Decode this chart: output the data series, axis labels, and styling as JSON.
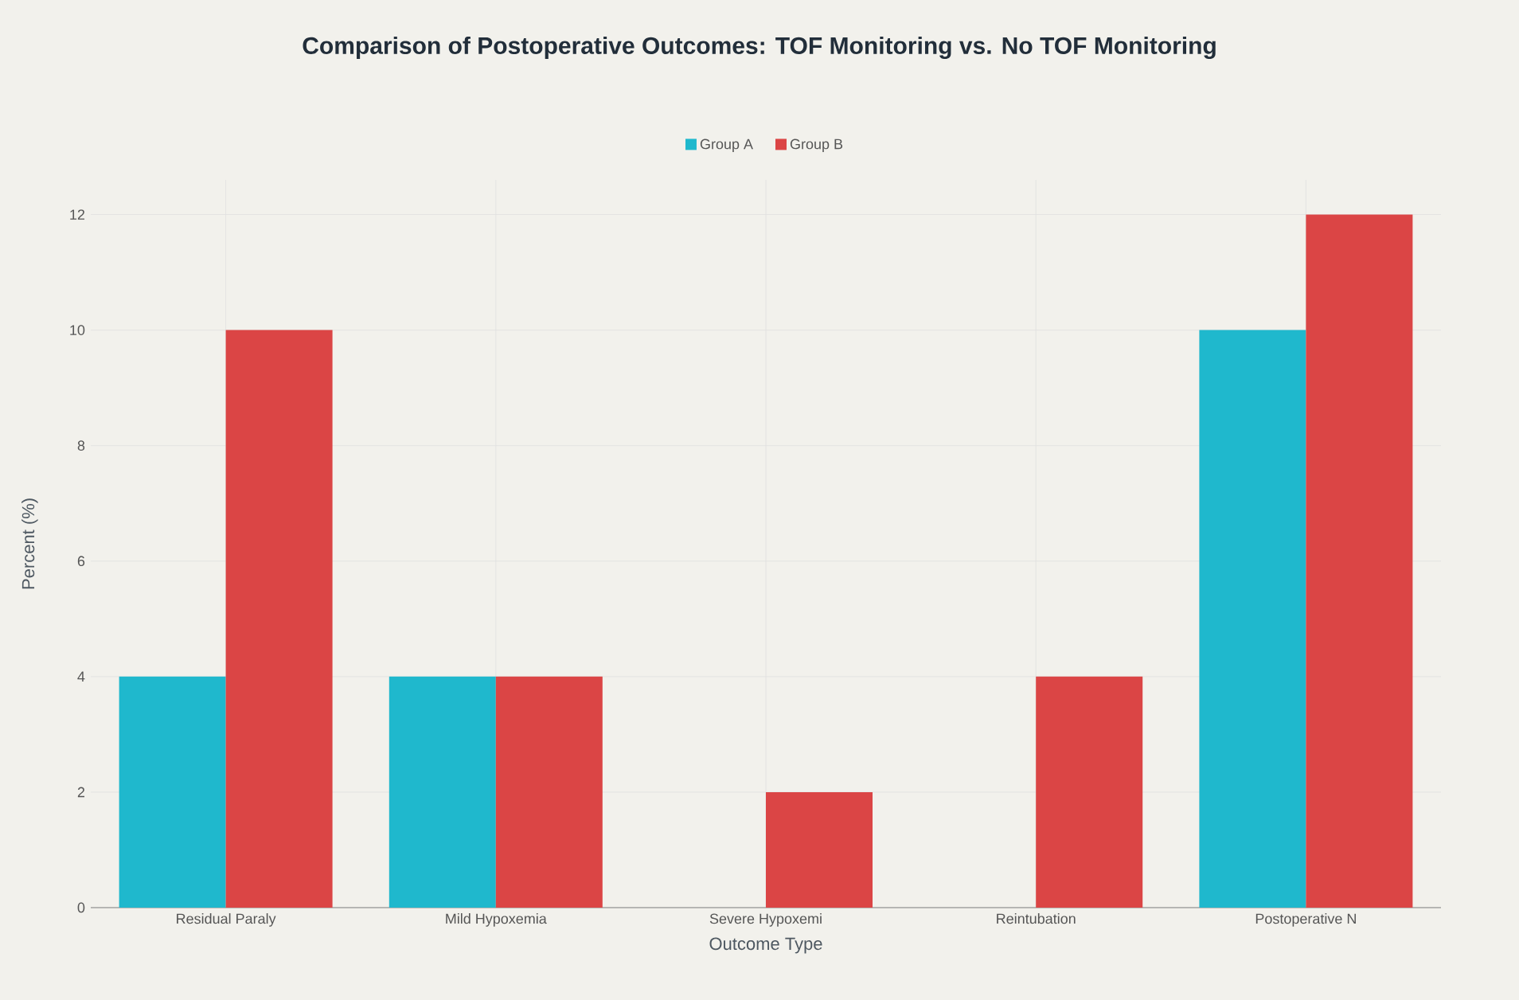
{
  "chart_data": {
    "type": "bar",
    "title": "Comparison of Postoperative Outcomes: TOF Monitoring vs. No TOF Monitoring",
    "xlabel": "Outcome Type",
    "ylabel": "Percent (%)",
    "categories": [
      "Residual Paraly",
      "Mild Hypoxemia",
      "Severe Hypoxemi",
      "Reintubation",
      "Postoperative N"
    ],
    "series": [
      {
        "name": "Group A",
        "color": "#1fb8cd",
        "values": [
          4,
          4,
          0,
          0,
          10
        ]
      },
      {
        "name": "Group B",
        "color": "#db4545",
        "values": [
          10,
          4,
          2,
          4,
          12
        ]
      }
    ],
    "ylim": [
      0,
      12.6
    ],
    "yticks": [
      0,
      2,
      4,
      6,
      8,
      10,
      12
    ],
    "grid": true,
    "legend": "top"
  }
}
